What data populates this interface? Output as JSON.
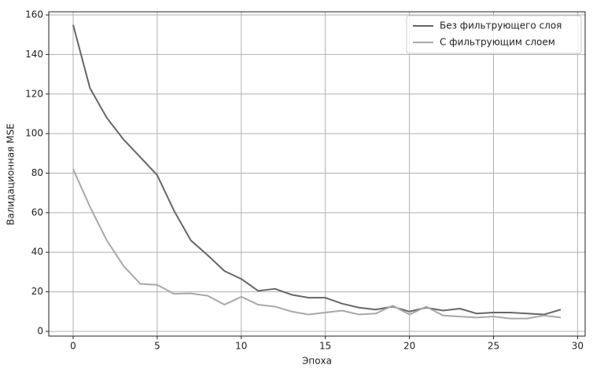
{
  "chart_data": {
    "type": "line",
    "xlabel": "Эпоха",
    "ylabel": "Валидационная MSE",
    "x": [
      0,
      1,
      2,
      3,
      4,
      5,
      6,
      7,
      8,
      9,
      10,
      11,
      12,
      13,
      14,
      15,
      16,
      17,
      18,
      19,
      20,
      21,
      22,
      23,
      24,
      25,
      26,
      27,
      28,
      29
    ],
    "series": [
      {
        "name": "Без фильтрующего слоя",
        "color": "#666666",
        "values": [
          155,
          123,
          108,
          97,
          88,
          79,
          61,
          46,
          38.5,
          30.5,
          26.5,
          20.5,
          21.5,
          18.5,
          17,
          17,
          14,
          12,
          11,
          12.5,
          10,
          12,
          10.5,
          11.5,
          9,
          9.5,
          9.5,
          9,
          8.5,
          11
        ]
      },
      {
        "name": "С фильтрующим слоем",
        "color": "#a8a8a8",
        "values": [
          82,
          63,
          46,
          33,
          24,
          23.5,
          19,
          19.2,
          18,
          13.5,
          17.5,
          13.5,
          12.5,
          10,
          8.5,
          9.5,
          10.5,
          8.5,
          9,
          13,
          8.5,
          12.5,
          8,
          7.5,
          7,
          7.5,
          6.5,
          6.5,
          8,
          7
        ]
      }
    ],
    "xlim": [
      -1.45,
      30.45
    ],
    "ylim": [
      -2.4,
      161.6
    ],
    "xticks": [
      0,
      5,
      10,
      15,
      20,
      25,
      30
    ],
    "yticks": [
      0,
      20,
      40,
      60,
      80,
      100,
      120,
      140,
      160
    ],
    "grid": true,
    "legend": "upper right"
  }
}
